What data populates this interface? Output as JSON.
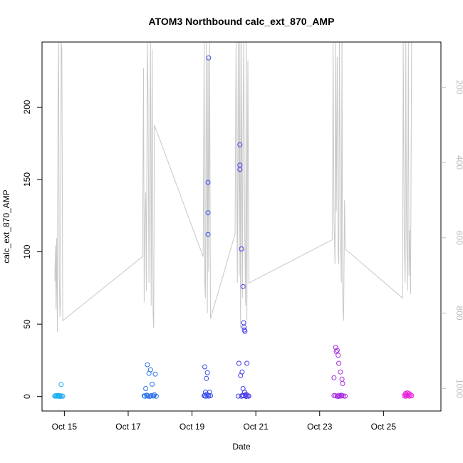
{
  "chart_data": {
    "type": "scatter",
    "title": "ATOM3 Northbound calc_ext_870_AMP",
    "xlabel": "Date",
    "ylabel": "calc_ext_870_AMP",
    "x_ticks": [
      {
        "label": "Oct 15",
        "day": 15
      },
      {
        "label": "Oct 17",
        "day": 17
      },
      {
        "label": "Oct 19",
        "day": 19
      },
      {
        "label": "Oct 21",
        "day": 21
      },
      {
        "label": "Oct 23",
        "day": 23
      },
      {
        "label": "Oct 25",
        "day": 25
      }
    ],
    "xlim": [
      14.3,
      26.8
    ],
    "ylim": [
      -10,
      245
    ],
    "y_ticks": [
      0,
      50,
      100,
      150,
      200
    ],
    "y2_ticks": [
      200,
      400,
      600,
      800,
      1000
    ],
    "y2lim": [
      80,
      1060
    ],
    "y2_reversed": true,
    "colors": {
      "point_start": "#1ab0ee",
      "point_mid": "#3a3ae8",
      "point_end": "#f020dc",
      "altitude_line": "#c8c8c8",
      "axis": "#000000",
      "axis2": "#bbbbbb"
    },
    "series": [
      {
        "points": [
          [
            14.75,
            0.5
          ],
          [
            14.78,
            0.2
          ],
          [
            14.8,
            0.8
          ],
          [
            14.82,
            0.3
          ],
          [
            14.85,
            0.6
          ],
          [
            14.87,
            0.1
          ],
          [
            14.9,
            8.3
          ],
          [
            14.92,
            0.4
          ],
          [
            14.95,
            0.2
          ],
          [
            14.7,
            0.3
          ],
          [
            14.72,
            0.6
          ],
          [
            17.5,
            0.5
          ],
          [
            17.52,
            0.2
          ],
          [
            17.55,
            5.5
          ],
          [
            17.58,
            1.0
          ],
          [
            17.6,
            22.0
          ],
          [
            17.62,
            0.3
          ],
          [
            17.65,
            16.0
          ],
          [
            17.7,
            18.5
          ],
          [
            17.72,
            0.6
          ],
          [
            17.75,
            8.5
          ],
          [
            17.8,
            0.4
          ],
          [
            17.82,
            1.2
          ],
          [
            17.85,
            15.5
          ],
          [
            17.88,
            0.2
          ],
          [
            17.6,
            0.8
          ],
          [
            17.68,
            0.1
          ],
          [
            17.78,
            0.5
          ],
          [
            19.4,
            20.5
          ],
          [
            19.42,
            3.0
          ],
          [
            19.45,
            12.5
          ],
          [
            19.48,
            16.5
          ],
          [
            19.5,
            1.0
          ],
          [
            19.5,
            112
          ],
          [
            19.5,
            127
          ],
          [
            19.5,
            148
          ],
          [
            19.52,
            234
          ],
          [
            19.52,
            0.3
          ],
          [
            19.55,
            3.0
          ],
          [
            19.38,
            0.5
          ],
          [
            19.43,
            0.2
          ],
          [
            19.58,
            0.6
          ],
          [
            19.4,
            0.8
          ],
          [
            19.46,
            1.5
          ],
          [
            20.45,
            0.3
          ],
          [
            20.47,
            23.0
          ],
          [
            20.5,
            174
          ],
          [
            20.5,
            160
          ],
          [
            20.5,
            157
          ],
          [
            20.52,
            14.5
          ],
          [
            20.55,
            102
          ],
          [
            20.57,
            17.0
          ],
          [
            20.6,
            76
          ],
          [
            20.62,
            51
          ],
          [
            20.63,
            48
          ],
          [
            20.64,
            46
          ],
          [
            20.66,
            45
          ],
          [
            20.6,
            5.5
          ],
          [
            20.65,
            3.0
          ],
          [
            20.68,
            0.8
          ],
          [
            20.7,
            1.5
          ],
          [
            20.72,
            23.0
          ],
          [
            20.75,
            0.5
          ],
          [
            20.55,
            0.2
          ],
          [
            20.62,
            0.6
          ],
          [
            20.78,
            0.3
          ],
          [
            20.58,
            0.9
          ],
          [
            20.7,
            0.1
          ],
          [
            23.45,
            13.0
          ],
          [
            23.5,
            34.0
          ],
          [
            23.52,
            31.0
          ],
          [
            23.55,
            32.0
          ],
          [
            23.58,
            28.5
          ],
          [
            23.6,
            23.0
          ],
          [
            23.65,
            17.0
          ],
          [
            23.7,
            12.0
          ],
          [
            23.72,
            9.0
          ],
          [
            23.5,
            0.5
          ],
          [
            23.55,
            0.2
          ],
          [
            23.6,
            0.8
          ],
          [
            23.65,
            0.3
          ],
          [
            23.7,
            0.6
          ],
          [
            23.75,
            0.4
          ],
          [
            23.8,
            0.2
          ],
          [
            23.45,
            0.7
          ],
          [
            23.58,
            0.1
          ],
          [
            23.68,
            0.9
          ],
          [
            25.65,
            0.5
          ],
          [
            25.68,
            1.5
          ],
          [
            25.7,
            2.2
          ],
          [
            25.72,
            0.8
          ],
          [
            25.75,
            2.5
          ],
          [
            25.78,
            1.0
          ],
          [
            25.8,
            2.0
          ],
          [
            25.82,
            0.3
          ],
          [
            25.85,
            1.2
          ],
          [
            25.88,
            0.6
          ],
          [
            25.7,
            0.2
          ],
          [
            25.76,
            0.9
          ]
        ]
      }
    ],
    "altitude_line": [
      [
        14.7,
        715
      ],
      [
        14.72,
        620
      ],
      [
        14.74,
        790
      ],
      [
        14.76,
        600
      ],
      [
        14.78,
        850
      ],
      [
        14.8,
        250
      ],
      [
        14.82,
        80
      ],
      [
        14.84,
        700
      ],
      [
        14.86,
        810
      ],
      [
        14.88,
        760
      ],
      [
        14.9,
        80
      ],
      [
        14.92,
        100
      ],
      [
        14.95,
        820
      ],
      [
        17.45,
        650
      ],
      [
        17.48,
        150
      ],
      [
        17.5,
        770
      ],
      [
        17.52,
        560
      ],
      [
        17.55,
        480
      ],
      [
        17.57,
        740
      ],
      [
        17.6,
        80
      ],
      [
        17.62,
        200
      ],
      [
        17.65,
        720
      ],
      [
        17.68,
        300
      ],
      [
        17.7,
        80
      ],
      [
        17.72,
        780
      ],
      [
        17.75,
        100
      ],
      [
        17.78,
        800
      ],
      [
        17.8,
        840
      ],
      [
        17.82,
        300
      ],
      [
        19.35,
        650
      ],
      [
        19.38,
        80
      ],
      [
        19.4,
        720
      ],
      [
        19.42,
        760
      ],
      [
        19.45,
        80
      ],
      [
        19.48,
        800
      ],
      [
        19.5,
        120
      ],
      [
        19.52,
        690
      ],
      [
        19.55,
        80
      ],
      [
        19.58,
        815
      ],
      [
        20.35,
        590
      ],
      [
        20.38,
        80
      ],
      [
        20.4,
        420
      ],
      [
        20.42,
        720
      ],
      [
        20.45,
        80
      ],
      [
        20.48,
        700
      ],
      [
        20.5,
        80
      ],
      [
        20.52,
        840
      ],
      [
        20.55,
        80
      ],
      [
        20.58,
        760
      ],
      [
        20.6,
        300
      ],
      [
        20.62,
        80
      ],
      [
        20.65,
        580
      ],
      [
        20.68,
        780
      ],
      [
        20.7,
        80
      ],
      [
        20.72,
        820
      ],
      [
        20.75,
        130
      ],
      [
        20.78,
        720
      ],
      [
        23.4,
        605
      ],
      [
        23.42,
        80
      ],
      [
        23.45,
        550
      ],
      [
        23.48,
        670
      ],
      [
        23.5,
        80
      ],
      [
        23.52,
        530
      ],
      [
        23.55,
        120
      ],
      [
        23.58,
        640
      ],
      [
        23.6,
        670
      ],
      [
        23.62,
        80
      ],
      [
        23.65,
        570
      ],
      [
        23.68,
        720
      ],
      [
        23.7,
        80
      ],
      [
        23.72,
        760
      ],
      [
        23.75,
        820
      ],
      [
        23.78,
        500
      ],
      [
        23.8,
        630
      ],
      [
        25.6,
        760
      ],
      [
        25.62,
        80
      ],
      [
        25.65,
        600
      ],
      [
        25.68,
        720
      ],
      [
        25.7,
        80
      ],
      [
        25.72,
        540
      ],
      [
        25.75,
        740
      ],
      [
        25.78,
        80
      ],
      [
        25.8,
        700
      ],
      [
        25.82,
        580
      ],
      [
        25.85,
        750
      ],
      [
        25.88,
        80
      ]
    ]
  }
}
